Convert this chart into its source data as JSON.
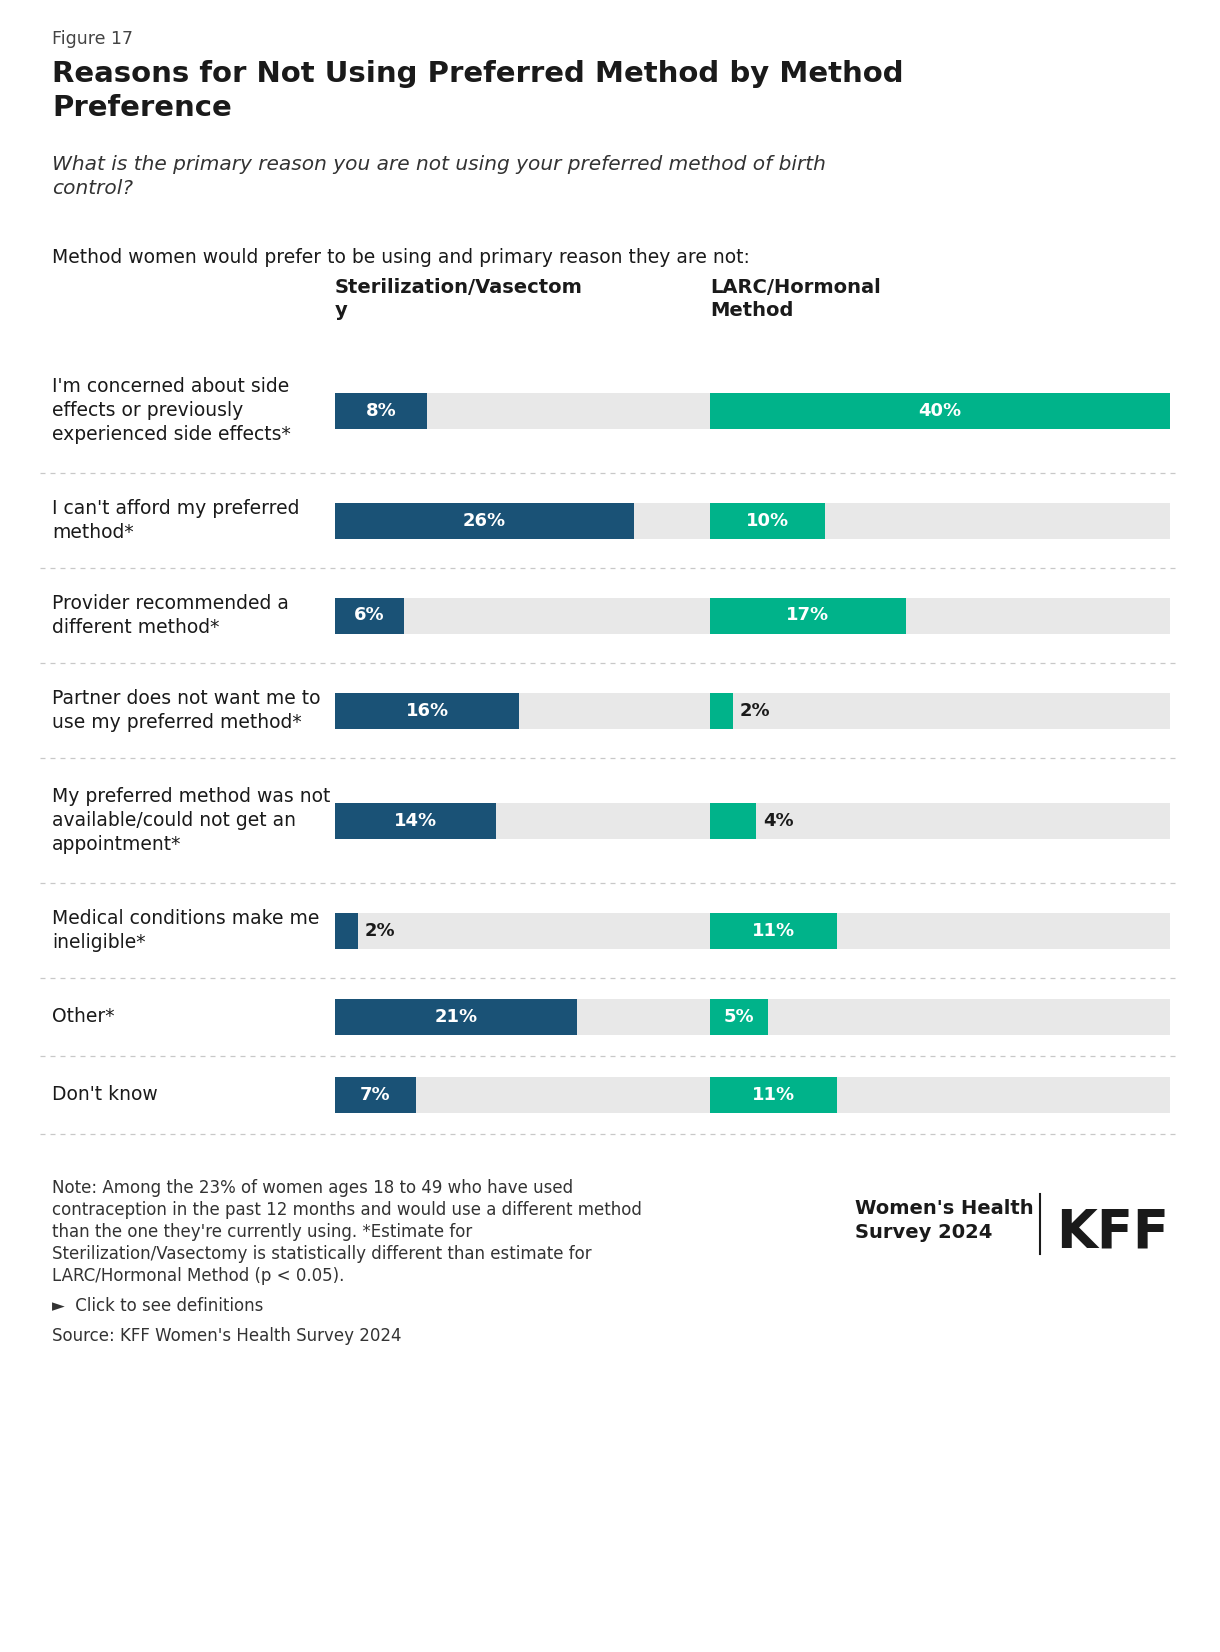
{
  "figure_label": "Figure 17",
  "title": "Reasons for Not Using Preferred Method by Method\nPreference",
  "subtitle": "What is the primary reason you are not using your preferred method of birth\ncontrol?",
  "col_intro": "Method women would prefer to be using and primary reason they are not:",
  "col1_header": "Sterilization/Vasectom\ny",
  "col2_header": "LARC/Hormonal\nMethod",
  "categories": [
    "I'm concerned about side\neffects or previously\nexperienced side effects*",
    "I can't afford my preferred\nmethod*",
    "Provider recommended a\ndifferent method*",
    "Partner does not want me to\nuse my preferred method*",
    "My preferred method was not\navailable/could not get an\nappointment*",
    "Medical conditions make me\nineligible*",
    "Other*",
    "Don't know"
  ],
  "sterilization_values": [
    8,
    26,
    6,
    16,
    14,
    2,
    21,
    7
  ],
  "larc_values": [
    40,
    10,
    17,
    2,
    4,
    11,
    5,
    11
  ],
  "sterilization_color": "#1a5276",
  "larc_color": "#00b38a",
  "bar_bg_color": "#e8e8e8",
  "max_value": 40,
  "note_line1": "Note: Among the 23% of women ages 18 to 49 who have used",
  "note_line2": "contraception in the past 12 months and would use a different method",
  "note_line3": "than the one they're currently using. *Estimate for",
  "note_line4": "Sterilization/Vasectomy is statistically different than estimate for",
  "note_line5": "LARC/Hormonal Method (p < 0.05).",
  "click_text": "►  Click to see definitions",
  "source_text": "Source: KFF Women's Health Survey 2024",
  "brand_line1": "Women's Health",
  "brand_line2": "Survey 2024",
  "brand_kff": "KFF",
  "bg_color": "#ffffff",
  "text_color": "#1a1a1a"
}
